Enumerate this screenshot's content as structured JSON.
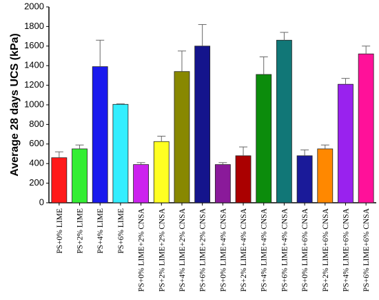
{
  "chart_data": {
    "type": "bar",
    "title": "",
    "xlabel": "",
    "ylabel": "Average 28 days UCS (kPa)",
    "ylim": [
      0,
      2000
    ],
    "yticks": [
      0,
      200,
      400,
      600,
      800,
      1000,
      1200,
      1400,
      1600,
      1800,
      2000
    ],
    "grid": false,
    "categories": [
      "PS+0% LIME",
      "PS+2% LIME",
      "PS+4% LIME",
      "PS+6% LIME",
      "PS+0% LIME+2% CNSA",
      "PS+2% LIME+2% CNSA",
      "PS+4% LIME+2% CNSA",
      "PS+6% LIME+2% CNSA",
      "PS+0% LIME+4% CNSA",
      "PS+2% LIME+4% CNSA",
      "PS+4% LIME+4% CNSA",
      "PS+6% LIME+4% CNSA",
      "PS+0% LIME+6% CNSA",
      "PS+2% LIME+6% CNSA",
      "PS+4% LIME+6% CNSA",
      "PS+6% LIME+6% CNSA"
    ],
    "values": [
      460,
      550,
      1390,
      1005,
      390,
      625,
      1340,
      1600,
      390,
      480,
      1310,
      1660,
      480,
      550,
      1210,
      1520
    ],
    "error_upper": [
      520,
      590,
      1660,
      1010,
      410,
      680,
      1550,
      1820,
      410,
      570,
      1490,
      1740,
      540,
      590,
      1270,
      1600
    ],
    "colors": [
      "#ff1a1a",
      "#33ee33",
      "#1a1aee",
      "#33eeff",
      "#cc22ee",
      "#ffff22",
      "#888800",
      "#14148c",
      "#8a1a9a",
      "#aa0000",
      "#0c8c0c",
      "#117777",
      "#1a1a99",
      "#ff8800",
      "#9922ee",
      "#ff1199"
    ]
  }
}
